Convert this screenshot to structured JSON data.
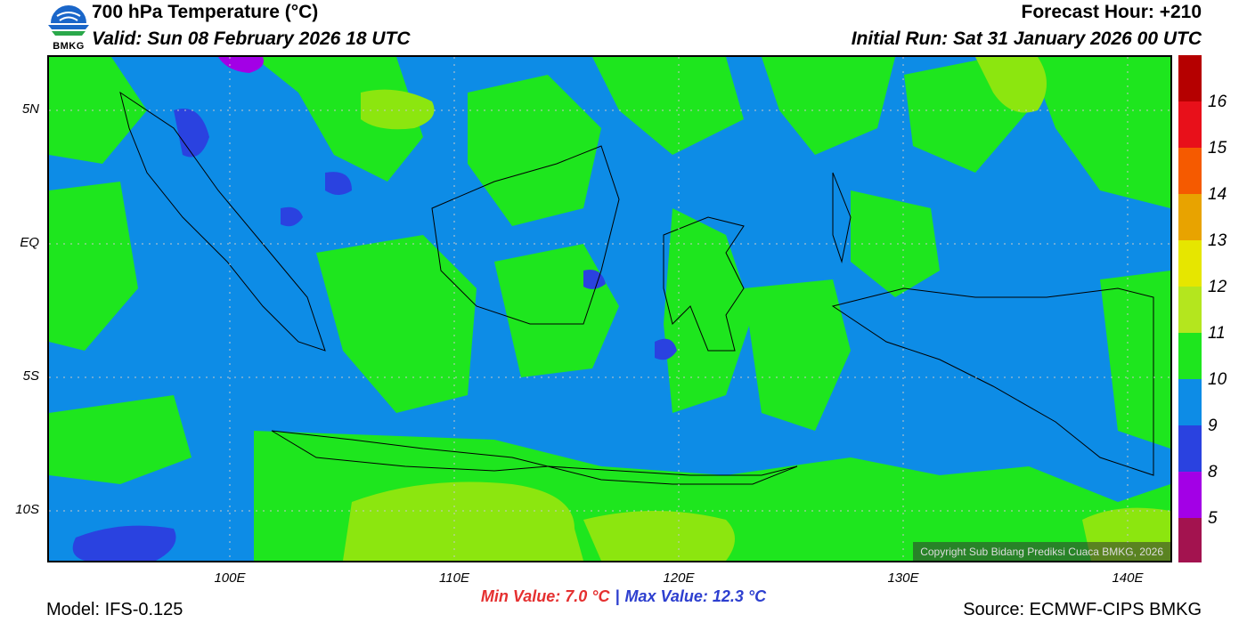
{
  "header": {
    "title": "700 hPa Temperature (°C)",
    "valid": "Valid: Sun 08 February 2026 18 UTC",
    "forecast_hour": "Forecast Hour: +210",
    "initial_run": "Initial Run: Sat 31 January 2026 00 UTC"
  },
  "logo": {
    "text": "BMKG"
  },
  "axes": {
    "lat_labels": [
      "5N",
      "EQ",
      "5S",
      "10S"
    ],
    "lon_labels": [
      "100E",
      "110E",
      "120E",
      "130E",
      "140E"
    ]
  },
  "colorbar": {
    "labels": [
      "16",
      "15",
      "14",
      "13",
      "12",
      "11",
      "10",
      "9",
      "8",
      "5"
    ],
    "colors": [
      "#b50000",
      "#e8101a",
      "#f55a00",
      "#e8a300",
      "#e6e600",
      "#b4e61e",
      "#1ee61e",
      "#0d8ce6",
      "#2a42e0",
      "#a300e6",
      "#a3134f"
    ]
  },
  "stats": {
    "min": "Min Value: 7.0 °C",
    "separator": "|",
    "max": "Max Value: 12.3 °C"
  },
  "footer": {
    "model": "Model: IFS-0.125",
    "source": "Source: ECMWF-CIPS BMKG",
    "copyright": "Copyright Sub Bidang Prediksi Cuaca BMKG, 2026"
  },
  "palette": {
    "blue": "#0d8ce6",
    "green": "#1ee61e",
    "yellowgreen": "#8ce60f",
    "darkblue": "#2a42e0",
    "purple": "#a300e6"
  }
}
